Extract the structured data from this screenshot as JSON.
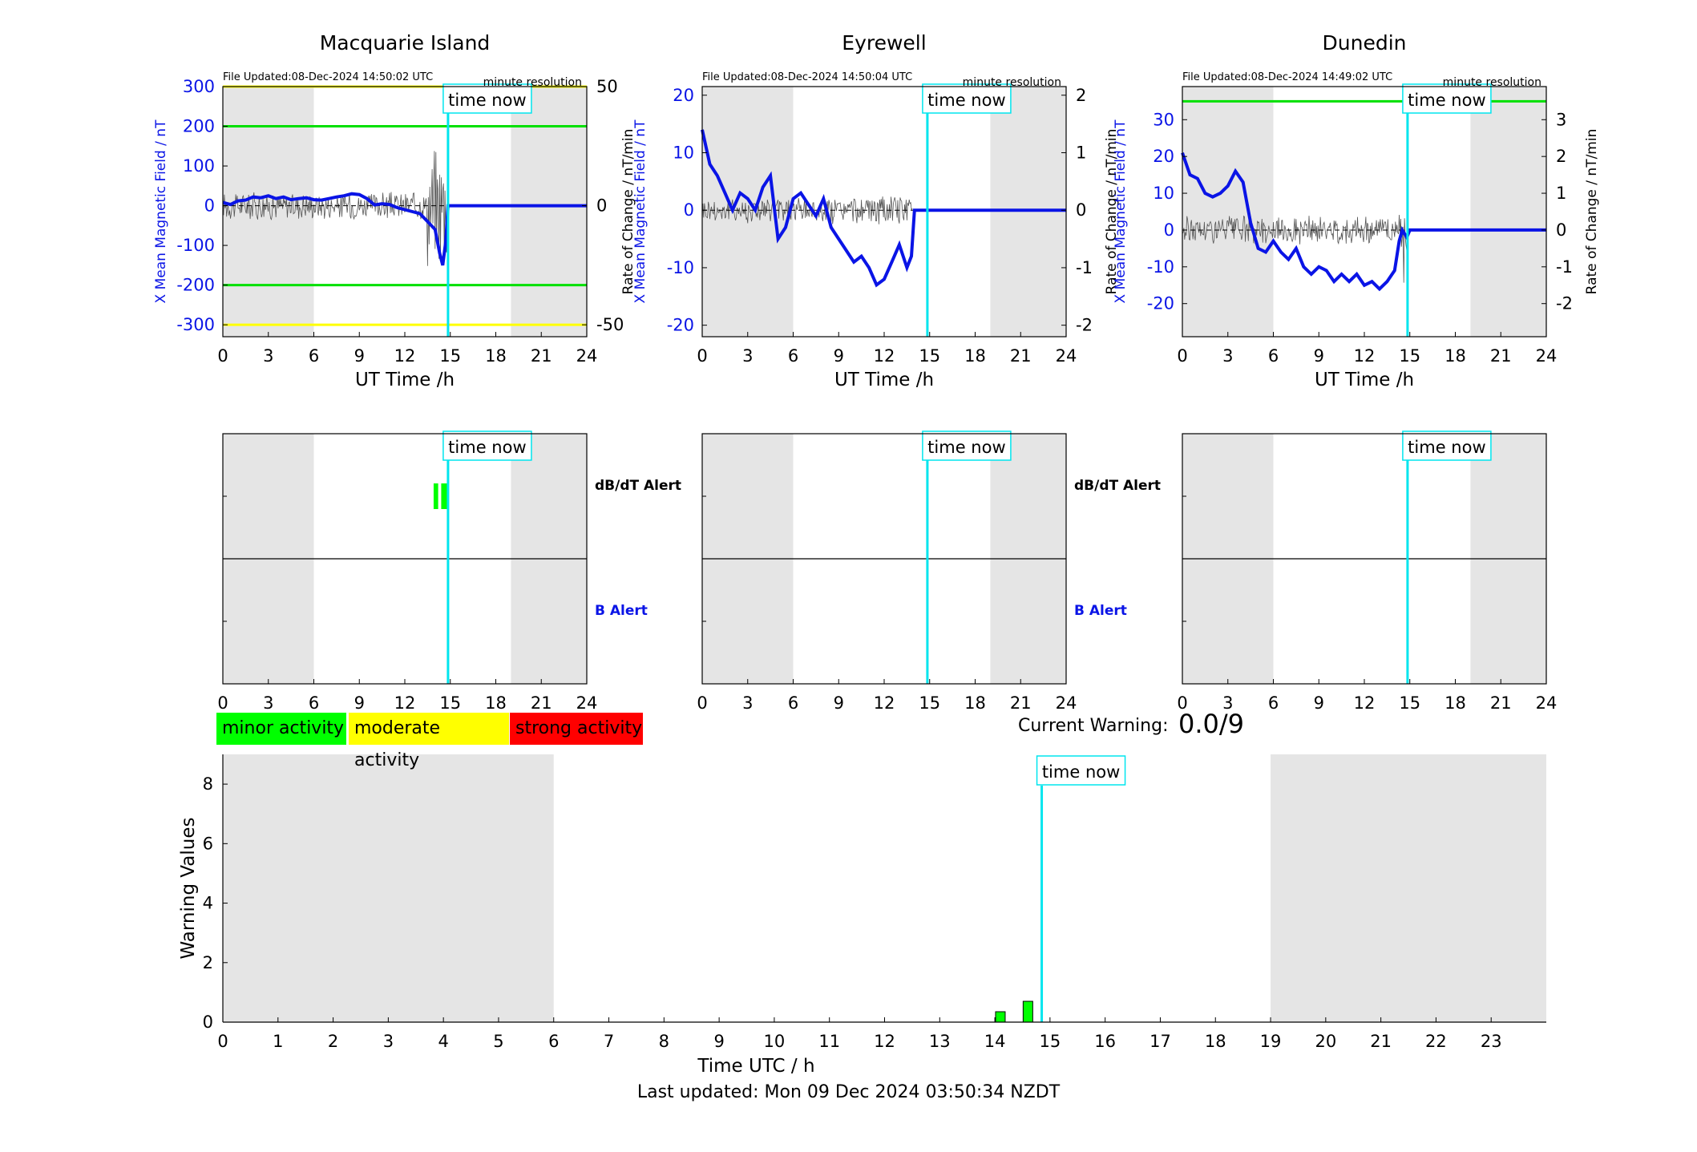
{
  "stations": [
    {
      "name": "Macquarie Island",
      "file_updated": "File Updated:08-Dec-2024 14:50:02 UTC",
      "resolution": "minute resolution",
      "y_left_label": "X Mean Magnetic Field / nT",
      "y_right_label": "",
      "x_label": "UT Time /h",
      "x_ticks": [
        0,
        3,
        6,
        9,
        12,
        15,
        18,
        21,
        24
      ],
      "y_left_ticks": [
        -300,
        -200,
        -100,
        0,
        100,
        200,
        300
      ],
      "y_left_range": [
        -330,
        300
      ],
      "y_right_ticks": [
        -50,
        0,
        50
      ],
      "y_right_range": [
        -55,
        50
      ],
      "time_now_label": "time now",
      "time_now_h": 14.85,
      "threshold_lines": [
        {
          "value": 300,
          "color": "#ffff00"
        },
        {
          "value": 200,
          "color": "#00e000"
        },
        {
          "value": -200,
          "color": "#00e000"
        },
        {
          "value": -300,
          "color": "#ffff00"
        }
      ],
      "shade": [
        [
          0,
          6
        ],
        [
          19,
          24
        ]
      ],
      "x_series": [
        [
          0,
          8
        ],
        [
          0.5,
          3
        ],
        [
          1,
          12
        ],
        [
          1.5,
          14
        ],
        [
          2,
          22
        ],
        [
          2.5,
          20
        ],
        [
          3,
          25
        ],
        [
          3.5,
          18
        ],
        [
          4,
          22
        ],
        [
          4.5,
          15
        ],
        [
          5,
          18
        ],
        [
          5.5,
          20
        ],
        [
          6,
          15
        ],
        [
          6.5,
          14
        ],
        [
          7,
          18
        ],
        [
          7.5,
          22
        ],
        [
          8,
          25
        ],
        [
          8.5,
          30
        ],
        [
          9,
          28
        ],
        [
          9.5,
          18
        ],
        [
          10,
          2
        ],
        [
          10.5,
          5
        ],
        [
          11,
          3
        ],
        [
          11.5,
          -5
        ],
        [
          12,
          -10
        ],
        [
          12.5,
          -15
        ],
        [
          13,
          -20
        ],
        [
          13.5,
          -40
        ],
        [
          14,
          -60
        ],
        [
          14.3,
          -120
        ],
        [
          14.5,
          -150
        ],
        [
          14.7,
          -90
        ],
        [
          14.85,
          0
        ],
        [
          24,
          0
        ]
      ],
      "alert_label_dbdt": "dB/dT Alert",
      "alert_label_b": "B Alert",
      "dbdt_alerts": [
        {
          "t0": 13.9,
          "t1": 14.2,
          "color": "#00ff00"
        },
        {
          "t0": 14.4,
          "t1": 14.8,
          "color": "#00ff00"
        },
        {
          "t0": 14.8,
          "t1": 14.9,
          "color": "#ffff00"
        }
      ]
    },
    {
      "name": "Eyrewell",
      "file_updated": "File Updated:08-Dec-2024 14:50:04 UTC",
      "resolution": "minute resolution",
      "y_left_label": "X Mean Magnetic Field / nT",
      "y_right_label": "Rate of Change / nT/min",
      "y_right_label_left": "Rate of Change / nT/min",
      "x_label": "UT Time /h",
      "x_ticks": [
        0,
        3,
        6,
        9,
        12,
        15,
        18,
        21,
        24
      ],
      "y_left_ticks": [
        -20,
        -10,
        0,
        10,
        20
      ],
      "y_left_range": [
        -22,
        21.5
      ],
      "y_right_ticks": [
        -2,
        -1,
        0,
        1,
        2
      ],
      "y_right_range": [
        -2.2,
        2.15
      ],
      "time_now_label": "time now",
      "time_now_h": 14.85,
      "threshold_lines": [],
      "shade": [
        [
          0,
          6
        ],
        [
          19,
          24
        ]
      ],
      "x_series": [
        [
          0,
          14
        ],
        [
          0.5,
          8
        ],
        [
          1,
          6
        ],
        [
          1.5,
          3
        ],
        [
          2,
          0
        ],
        [
          2.5,
          3
        ],
        [
          3,
          2
        ],
        [
          3.5,
          0
        ],
        [
          4,
          4
        ],
        [
          4.5,
          6
        ],
        [
          5,
          -5
        ],
        [
          5.5,
          -3
        ],
        [
          6,
          2
        ],
        [
          6.5,
          3
        ],
        [
          7,
          1
        ],
        [
          7.5,
          -1
        ],
        [
          8,
          2
        ],
        [
          8.5,
          -3
        ],
        [
          9,
          -5
        ],
        [
          9.5,
          -7
        ],
        [
          10,
          -9
        ],
        [
          10.5,
          -8
        ],
        [
          11,
          -10
        ],
        [
          11.5,
          -13
        ],
        [
          12,
          -12
        ],
        [
          12.5,
          -9
        ],
        [
          13,
          -6
        ],
        [
          13.5,
          -10
        ],
        [
          13.8,
          -8
        ],
        [
          14,
          0
        ],
        [
          24,
          0
        ]
      ],
      "alert_label_dbdt": "dB/dT Alert",
      "alert_label_b": "B Alert",
      "dbdt_alerts": []
    },
    {
      "name": "Dunedin",
      "file_updated": "File Updated:08-Dec-2024 14:49:02 UTC",
      "resolution": "minute resolution",
      "y_left_label": "X Mean Magnetic Field / nT",
      "y_right_label": "Rate of Change / nT/min",
      "x_label": "UT Time /h",
      "x_ticks": [
        0,
        3,
        6,
        9,
        12,
        15,
        18,
        21,
        24
      ],
      "y_left_ticks": [
        -20,
        -10,
        0,
        10,
        20,
        30
      ],
      "y_left_range": [
        -29,
        39
      ],
      "y_right_ticks": [
        -2,
        -1,
        0,
        1,
        2,
        3
      ],
      "y_right_range": [
        -2.9,
        3.9
      ],
      "time_now_label": "time now",
      "time_now_h": 14.85,
      "threshold_lines": [
        {
          "value": 35,
          "color": "#00e000"
        }
      ],
      "shade": [
        [
          0,
          6
        ],
        [
          19,
          24
        ]
      ],
      "x_series": [
        [
          0,
          21
        ],
        [
          0.5,
          15
        ],
        [
          1,
          14
        ],
        [
          1.5,
          10
        ],
        [
          2,
          9
        ],
        [
          2.5,
          10
        ],
        [
          3,
          12
        ],
        [
          3.5,
          16
        ],
        [
          4,
          13
        ],
        [
          4.5,
          2
        ],
        [
          5,
          -5
        ],
        [
          5.5,
          -6
        ],
        [
          6,
          -3
        ],
        [
          6.5,
          -6
        ],
        [
          7,
          -8
        ],
        [
          7.5,
          -5
        ],
        [
          8,
          -10
        ],
        [
          8.5,
          -12
        ],
        [
          9,
          -10
        ],
        [
          9.5,
          -11
        ],
        [
          10,
          -14
        ],
        [
          10.5,
          -12
        ],
        [
          11,
          -14
        ],
        [
          11.5,
          -12
        ],
        [
          12,
          -15
        ],
        [
          12.5,
          -14
        ],
        [
          13,
          -16
        ],
        [
          13.5,
          -14
        ],
        [
          14,
          -11
        ],
        [
          14.3,
          -3
        ],
        [
          14.5,
          0
        ],
        [
          14.8,
          -2
        ],
        [
          15,
          0
        ],
        [
          24,
          0
        ]
      ],
      "alert_label_dbdt": "dB/dT Alert",
      "alert_label_b": "B Alert",
      "dbdt_alerts": []
    }
  ],
  "legend": {
    "minor": {
      "label": "minor activity",
      "color": "#00ff00"
    },
    "moderate": {
      "label": "moderate activity",
      "color": "#ffff00"
    },
    "strong": {
      "label": "strong activity",
      "color": "#ff0000"
    }
  },
  "current_warning": {
    "label": "Current Warning:",
    "value": "0.0/9"
  },
  "chart_data": {
    "type": "bar",
    "xlabel": "Time UTC / h",
    "ylabel": "Warning Values",
    "x_ticks": [
      0,
      1,
      2,
      3,
      4,
      5,
      6,
      7,
      8,
      9,
      10,
      11,
      12,
      13,
      14,
      15,
      16,
      17,
      18,
      19,
      20,
      21,
      22,
      23
    ],
    "y_ticks": [
      0,
      2,
      4,
      6,
      8
    ],
    "ylim": [
      0,
      9
    ],
    "xlim": [
      0,
      24
    ],
    "shade": [
      [
        0,
        6
      ],
      [
        19,
        24
      ]
    ],
    "time_now_label": "time now",
    "time_now_h": 14.85,
    "bars": [
      {
        "x": 14.1,
        "value": 0.35,
        "color": "#00ff00"
      },
      {
        "x": 14.6,
        "value": 0.7,
        "color": "#00ff00"
      }
    ]
  },
  "last_updated": "Last updated: Mon 09 Dec 2024 03:50:34 NZDT"
}
